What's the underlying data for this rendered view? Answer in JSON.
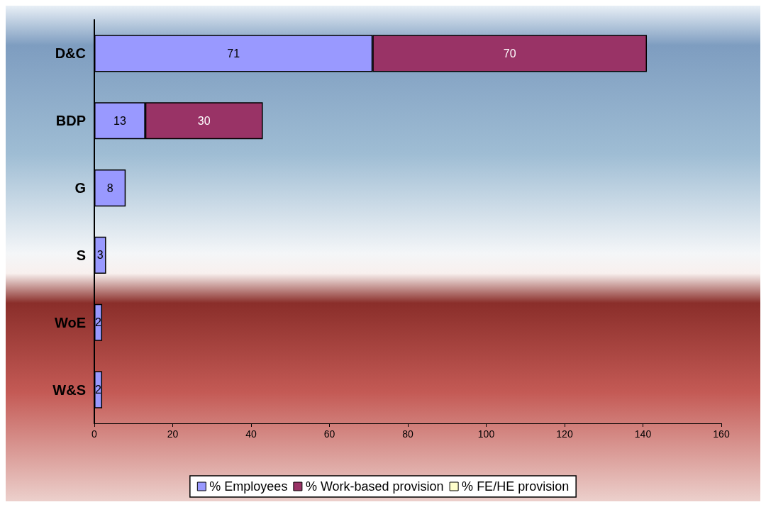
{
  "chart_data": {
    "type": "bar",
    "orientation": "horizontal",
    "stacked": true,
    "categories": [
      "D&C",
      "BDP",
      "G",
      "S",
      "WoE",
      "W&S"
    ],
    "series": [
      {
        "name": "% Employees",
        "color": "#9999ff",
        "values": [
          71,
          13,
          8,
          3,
          2,
          2
        ]
      },
      {
        "name": "% Work-based provision",
        "color": "#993366",
        "values": [
          70,
          30,
          null,
          null,
          null,
          null
        ]
      },
      {
        "name": "% FE/HE provision",
        "color": "#ffffcc",
        "values": [
          null,
          null,
          null,
          null,
          null,
          null
        ]
      }
    ],
    "xlim": [
      0,
      160
    ],
    "xticks": [
      0,
      20,
      40,
      60,
      80,
      100,
      120,
      140,
      160
    ],
    "data_labels": true,
    "grid": false,
    "legend": "bottom"
  }
}
